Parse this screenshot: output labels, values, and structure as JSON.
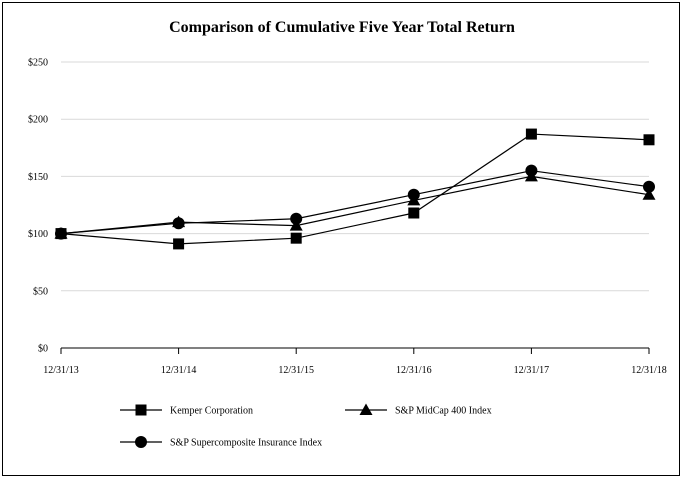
{
  "chart_data": {
    "type": "line",
    "title": "Comparison of Cumulative Five Year Total Return",
    "xlabel": "",
    "ylabel": "",
    "categories": [
      "12/31/13",
      "12/31/14",
      "12/31/15",
      "12/31/16",
      "12/31/17",
      "12/31/18"
    ],
    "ylim": [
      0,
      250
    ],
    "y_ticks": [
      0,
      50,
      100,
      150,
      200,
      250
    ],
    "y_tick_labels": [
      "$0",
      "$50",
      "$100",
      "$150",
      "$200",
      "$250"
    ],
    "grid": "horizontal",
    "legend_position": "bottom",
    "series": [
      {
        "name": "Kemper Corporation",
        "marker": "square",
        "color": "#000000",
        "values": [
          100,
          91,
          96,
          118,
          187,
          182
        ]
      },
      {
        "name": "S&P MidCap 400 Index",
        "marker": "triangle",
        "color": "#000000",
        "values": [
          100,
          110,
          107,
          129,
          150,
          134
        ]
      },
      {
        "name": "S&P Supercomposite Insurance Index",
        "marker": "circle",
        "color": "#000000",
        "values": [
          100,
          109,
          113,
          134,
          155,
          141
        ]
      }
    ]
  }
}
